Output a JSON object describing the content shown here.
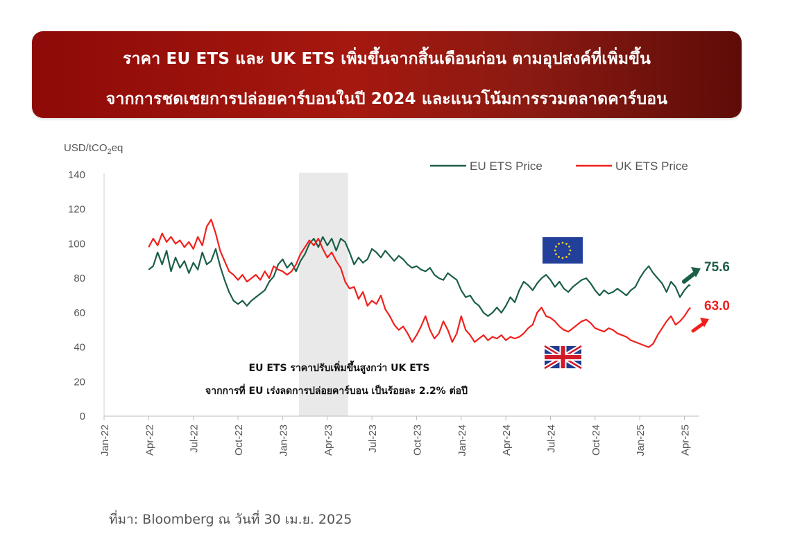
{
  "banner": {
    "title_line1": "ราคา EU ETS  และ UK ETS เพิ่มขึ้นจากสิ้นเดือนก่อน ตามอุปสงค์ที่เพิ่มขึ้น",
    "title_line2": "จากการชดเชยการปล่อยคาร์บอนในปี 2024 และแนวโน้มการรวมตลาดคาร์บอน",
    "colors": {
      "start": "#8e0a08",
      "end": "#5e0c08",
      "text": "#ffffff"
    }
  },
  "source": "ที่มา: Bloomberg ณ วันที่ 30 เม.ย. 2025",
  "chart_data": {
    "type": "line",
    "ylabel": "USD/tCO",
    "ylabel_sub": "2",
    "ylabel_suffix": "eq",
    "ylim": [
      0,
      140
    ],
    "yticks": [
      "0",
      "20",
      "40",
      "60",
      "80",
      "100",
      "120",
      "140"
    ],
    "x_range": [
      0,
      40
    ],
    "x_tick_labels": [
      "Jan-22",
      "Apr-22",
      "Jul-22",
      "Oct-22",
      "Jan-23",
      "Apr-23",
      "Jul-23",
      "Oct-23",
      "Jan-24",
      "Apr-24",
      "Jul-24",
      "Oct-24",
      "Jan-25",
      "Apr-25"
    ],
    "x_ticks_month_index": [
      0,
      3,
      6,
      9,
      12,
      15,
      18,
      21,
      24,
      27,
      30,
      33,
      36,
      39
    ],
    "grid": false,
    "legend_position": "top-right",
    "shaded_region": {
      "x_start_month_index": 13.1,
      "x_end_month_index": 16.4,
      "color": "#e9e9e9"
    },
    "annotation": {
      "line1": "EU ETS ราคาปรับเพิ่มขึ้นสูงกว่า UK ETS",
      "line2": "จากการที่ EU เร่งลดการปล่อยคาร์บอน เป็นร้อยละ 2.2% ต่อปี"
    },
    "series": [
      {
        "name": "EU ETS Price",
        "color": "#1b5e4a",
        "end_label": "75.6",
        "flag": "eu-flag",
        "points": [
          [
            3.0,
            85
          ],
          [
            3.3,
            87
          ],
          [
            3.6,
            95
          ],
          [
            3.9,
            88
          ],
          [
            4.2,
            96
          ],
          [
            4.5,
            84
          ],
          [
            4.8,
            92
          ],
          [
            5.1,
            86
          ],
          [
            5.4,
            90
          ],
          [
            5.7,
            83
          ],
          [
            6.0,
            89
          ],
          [
            6.3,
            85
          ],
          [
            6.6,
            95
          ],
          [
            6.9,
            88
          ],
          [
            7.2,
            90
          ],
          [
            7.5,
            97
          ],
          [
            7.8,
            87
          ],
          [
            8.1,
            79
          ],
          [
            8.4,
            72
          ],
          [
            8.7,
            67
          ],
          [
            9.0,
            65
          ],
          [
            9.3,
            67
          ],
          [
            9.6,
            64
          ],
          [
            9.9,
            67
          ],
          [
            10.2,
            69
          ],
          [
            10.5,
            71
          ],
          [
            10.8,
            73
          ],
          [
            11.1,
            78
          ],
          [
            11.4,
            81
          ],
          [
            11.7,
            88
          ],
          [
            12.0,
            91
          ],
          [
            12.3,
            86
          ],
          [
            12.6,
            89
          ],
          [
            12.9,
            84
          ],
          [
            13.2,
            90
          ],
          [
            13.5,
            94
          ],
          [
            13.8,
            100
          ],
          [
            14.1,
            103
          ],
          [
            14.4,
            98
          ],
          [
            14.7,
            104
          ],
          [
            15.0,
            99
          ],
          [
            15.3,
            103
          ],
          [
            15.6,
            96
          ],
          [
            15.9,
            103
          ],
          [
            16.2,
            101
          ],
          [
            16.5,
            95
          ],
          [
            16.8,
            88
          ],
          [
            17.1,
            92
          ],
          [
            17.4,
            89
          ],
          [
            17.7,
            91
          ],
          [
            18.0,
            97
          ],
          [
            18.3,
            95
          ],
          [
            18.6,
            92
          ],
          [
            18.9,
            96
          ],
          [
            19.2,
            93
          ],
          [
            19.5,
            90
          ],
          [
            19.8,
            93
          ],
          [
            20.1,
            91
          ],
          [
            20.4,
            88
          ],
          [
            20.7,
            86
          ],
          [
            21.0,
            87
          ],
          [
            21.3,
            85
          ],
          [
            21.6,
            84
          ],
          [
            21.9,
            86
          ],
          [
            22.2,
            82
          ],
          [
            22.5,
            80
          ],
          [
            22.8,
            79
          ],
          [
            23.1,
            83
          ],
          [
            23.4,
            81
          ],
          [
            23.7,
            79
          ],
          [
            24.0,
            73
          ],
          [
            24.3,
            69
          ],
          [
            24.6,
            70
          ],
          [
            24.9,
            66
          ],
          [
            25.2,
            64
          ],
          [
            25.5,
            60
          ],
          [
            25.8,
            58
          ],
          [
            26.1,
            60
          ],
          [
            26.4,
            63
          ],
          [
            26.7,
            60
          ],
          [
            27.0,
            64
          ],
          [
            27.3,
            69
          ],
          [
            27.6,
            66
          ],
          [
            27.9,
            73
          ],
          [
            28.2,
            78
          ],
          [
            28.5,
            76
          ],
          [
            28.8,
            73
          ],
          [
            29.1,
            77
          ],
          [
            29.4,
            80
          ],
          [
            29.7,
            82
          ],
          [
            30.0,
            79
          ],
          [
            30.3,
            75
          ],
          [
            30.6,
            78
          ],
          [
            30.9,
            74
          ],
          [
            31.2,
            72
          ],
          [
            31.5,
            75
          ],
          [
            31.8,
            77
          ],
          [
            32.1,
            79
          ],
          [
            32.4,
            80
          ],
          [
            32.7,
            77
          ],
          [
            33.0,
            73
          ],
          [
            33.3,
            70
          ],
          [
            33.6,
            73
          ],
          [
            33.9,
            71
          ],
          [
            34.2,
            72
          ],
          [
            34.5,
            74
          ],
          [
            34.8,
            72
          ],
          [
            35.1,
            70
          ],
          [
            35.4,
            73
          ],
          [
            35.7,
            75
          ],
          [
            36.0,
            80
          ],
          [
            36.3,
            84
          ],
          [
            36.6,
            87
          ],
          [
            36.9,
            83
          ],
          [
            37.2,
            80
          ],
          [
            37.5,
            77
          ],
          [
            37.8,
            72
          ],
          [
            38.1,
            78
          ],
          [
            38.4,
            75
          ],
          [
            38.7,
            69
          ],
          [
            39.0,
            73
          ],
          [
            39.3,
            76
          ],
          [
            39.4,
            75.6
          ]
        ]
      },
      {
        "name": "UK ETS Price",
        "color": "#f0201c",
        "end_label": "63.0",
        "flag": "uk-flag",
        "points": [
          [
            3.0,
            98
          ],
          [
            3.3,
            103
          ],
          [
            3.6,
            99
          ],
          [
            3.9,
            106
          ],
          [
            4.2,
            101
          ],
          [
            4.5,
            104
          ],
          [
            4.8,
            100
          ],
          [
            5.1,
            102
          ],
          [
            5.4,
            98
          ],
          [
            5.7,
            101
          ],
          [
            6.0,
            97
          ],
          [
            6.3,
            104
          ],
          [
            6.6,
            99
          ],
          [
            6.9,
            110
          ],
          [
            7.2,
            114
          ],
          [
            7.5,
            106
          ],
          [
            7.8,
            96
          ],
          [
            8.1,
            90
          ],
          [
            8.4,
            84
          ],
          [
            8.7,
            82
          ],
          [
            9.0,
            79
          ],
          [
            9.3,
            82
          ],
          [
            9.6,
            78
          ],
          [
            9.9,
            80
          ],
          [
            10.2,
            82
          ],
          [
            10.5,
            79
          ],
          [
            10.8,
            84
          ],
          [
            11.1,
            80
          ],
          [
            11.4,
            87
          ],
          [
            11.7,
            85
          ],
          [
            12.0,
            84
          ],
          [
            12.3,
            82
          ],
          [
            12.6,
            84
          ],
          [
            12.9,
            88
          ],
          [
            13.2,
            94
          ],
          [
            13.5,
            98
          ],
          [
            13.8,
            102
          ],
          [
            14.1,
            99
          ],
          [
            14.4,
            103
          ],
          [
            14.7,
            97
          ],
          [
            15.0,
            92
          ],
          [
            15.3,
            95
          ],
          [
            15.6,
            90
          ],
          [
            15.9,
            86
          ],
          [
            16.2,
            78
          ],
          [
            16.5,
            74
          ],
          [
            16.8,
            75
          ],
          [
            17.1,
            68
          ],
          [
            17.4,
            72
          ],
          [
            17.7,
            64
          ],
          [
            18.0,
            67
          ],
          [
            18.3,
            65
          ],
          [
            18.6,
            70
          ],
          [
            18.9,
            62
          ],
          [
            19.2,
            58
          ],
          [
            19.5,
            53
          ],
          [
            19.8,
            50
          ],
          [
            20.1,
            52
          ],
          [
            20.4,
            48
          ],
          [
            20.7,
            43
          ],
          [
            21.0,
            47
          ],
          [
            21.3,
            52
          ],
          [
            21.6,
            58
          ],
          [
            21.9,
            50
          ],
          [
            22.2,
            45
          ],
          [
            22.5,
            48
          ],
          [
            22.8,
            55
          ],
          [
            23.1,
            50
          ],
          [
            23.4,
            43
          ],
          [
            23.7,
            48
          ],
          [
            24.0,
            58
          ],
          [
            24.3,
            50
          ],
          [
            24.6,
            47
          ],
          [
            24.9,
            43
          ],
          [
            25.2,
            45
          ],
          [
            25.5,
            47
          ],
          [
            25.8,
            44
          ],
          [
            26.1,
            46
          ],
          [
            26.4,
            45
          ],
          [
            26.7,
            47
          ],
          [
            27.0,
            44
          ],
          [
            27.3,
            46
          ],
          [
            27.6,
            45
          ],
          [
            27.9,
            46
          ],
          [
            28.2,
            48
          ],
          [
            28.5,
            51
          ],
          [
            28.8,
            53
          ],
          [
            29.1,
            60
          ],
          [
            29.4,
            63
          ],
          [
            29.7,
            58
          ],
          [
            30.0,
            57
          ],
          [
            30.3,
            55
          ],
          [
            30.6,
            52
          ],
          [
            30.9,
            50
          ],
          [
            31.2,
            49
          ],
          [
            31.5,
            51
          ],
          [
            31.8,
            53
          ],
          [
            32.1,
            55
          ],
          [
            32.4,
            56
          ],
          [
            32.7,
            54
          ],
          [
            33.0,
            51
          ],
          [
            33.3,
            50
          ],
          [
            33.6,
            49
          ],
          [
            33.9,
            51
          ],
          [
            34.2,
            50
          ],
          [
            34.5,
            48
          ],
          [
            34.8,
            47
          ],
          [
            35.1,
            46
          ],
          [
            35.4,
            44
          ],
          [
            35.7,
            43
          ],
          [
            36.0,
            42
          ],
          [
            36.3,
            41
          ],
          [
            36.6,
            40
          ],
          [
            36.9,
            42
          ],
          [
            37.2,
            47
          ],
          [
            37.5,
            51
          ],
          [
            37.8,
            55
          ],
          [
            38.1,
            58
          ],
          [
            38.4,
            53
          ],
          [
            38.7,
            55
          ],
          [
            39.0,
            58
          ],
          [
            39.3,
            62
          ],
          [
            39.4,
            63.0
          ]
        ]
      }
    ]
  }
}
